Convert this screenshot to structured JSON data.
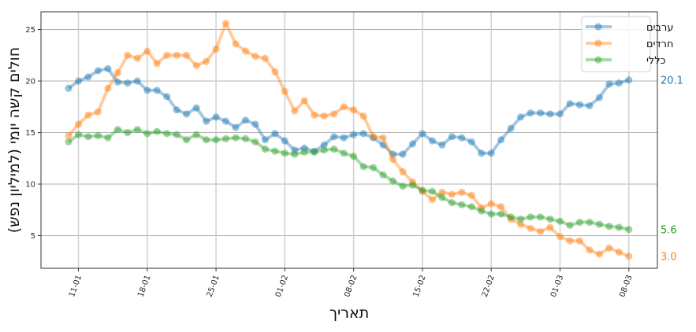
{
  "chart_data": {
    "type": "line",
    "title": "",
    "xlabel": "תאריך",
    "ylabel": "חולים קשה יומי (למיליון נפש)",
    "ylim": [
      2.0,
      26.8
    ],
    "yticks": [
      5,
      10,
      15,
      20,
      25
    ],
    "xticks": [
      "11-01",
      "18-01",
      "25-01",
      "01-02",
      "08-02",
      "15-02",
      "22-02",
      "01-03",
      "08-03"
    ],
    "grid": true,
    "legend_position": "upper right",
    "x_start": "10-01",
    "x_end": "08-03",
    "series": [
      {
        "name": "ערבים",
        "color": "#1f77b4",
        "end_label": "20.1",
        "values": [
          19.3,
          20.0,
          20.4,
          21.0,
          21.2,
          19.9,
          19.8,
          20.0,
          19.1,
          19.1,
          18.5,
          17.2,
          16.8,
          17.4,
          16.1,
          16.5,
          16.1,
          15.5,
          16.2,
          15.8,
          14.3,
          14.9,
          14.2,
          13.3,
          13.5,
          13.2,
          13.8,
          14.6,
          14.5,
          14.8,
          14.9,
          14.5,
          13.8,
          12.9,
          12.9,
          13.9,
          14.9,
          14.2,
          13.8,
          14.6,
          14.5,
          14.1,
          13.0,
          13.0,
          14.3,
          15.4,
          16.5,
          16.9,
          16.9,
          16.8,
          16.8,
          17.8,
          17.7,
          17.6,
          18.4,
          19.7,
          19.8,
          20.1
        ]
      },
      {
        "name": "חרדים",
        "color": "#ff7f0e",
        "end_label": "3.0",
        "values": [
          14.7,
          15.8,
          16.7,
          17.0,
          19.3,
          20.8,
          22.5,
          22.2,
          22.9,
          21.7,
          22.5,
          22.5,
          22.5,
          21.5,
          21.9,
          23.1,
          25.6,
          23.6,
          22.9,
          22.4,
          22.2,
          20.9,
          19.0,
          17.1,
          18.1,
          16.7,
          16.6,
          16.8,
          17.5,
          17.2,
          16.6,
          14.6,
          14.5,
          12.4,
          11.2,
          10.2,
          9.3,
          8.5,
          9.2,
          9.0,
          9.2,
          8.9,
          7.7,
          8.1,
          7.8,
          6.6,
          6.1,
          5.7,
          5.4,
          5.8,
          4.9,
          4.5,
          4.5,
          3.6,
          3.2,
          3.8,
          3.4,
          3.0
        ]
      },
      {
        "name": "כללי",
        "color": "#2ca02c",
        "end_label": "5.6",
        "values": [
          14.1,
          14.8,
          14.6,
          14.7,
          14.5,
          15.3,
          15.0,
          15.3,
          14.9,
          15.1,
          14.9,
          14.8,
          14.3,
          14.8,
          14.3,
          14.3,
          14.4,
          14.5,
          14.4,
          14.1,
          13.4,
          13.2,
          13.0,
          12.9,
          13.1,
          13.1,
          13.3,
          13.4,
          13.0,
          12.7,
          11.7,
          11.6,
          10.9,
          10.3,
          9.8,
          9.9,
          9.4,
          9.3,
          8.7,
          8.2,
          8.0,
          7.8,
          7.4,
          7.1,
          7.1,
          6.8,
          6.6,
          6.8,
          6.8,
          6.6,
          6.4,
          6.0,
          6.3,
          6.3,
          6.1,
          5.9,
          5.8,
          5.6
        ]
      }
    ]
  }
}
